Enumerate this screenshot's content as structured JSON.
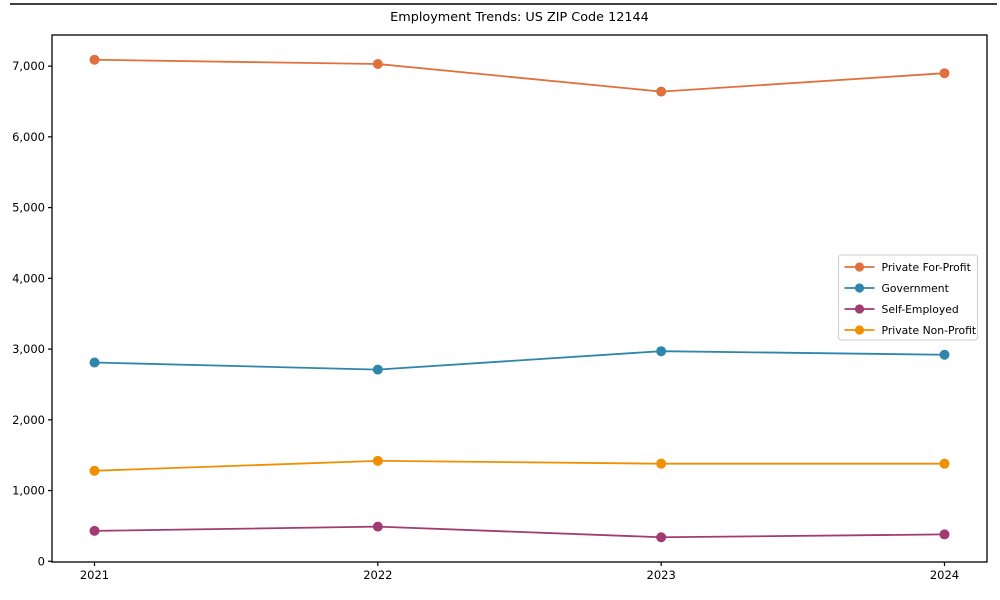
{
  "chart_data": {
    "type": "line",
    "title": "Employment Trends: US ZIP Code 12144",
    "x": [
      2021,
      2022,
      2023,
      2024
    ],
    "xtick_labels": [
      "2021",
      "2022",
      "2023",
      "2024"
    ],
    "yticks": [
      0,
      1000,
      2000,
      3000,
      4000,
      5000,
      6000,
      7000
    ],
    "ytick_labels": [
      "0",
      "1,000",
      "2,000",
      "3,000",
      "4,000",
      "5,000",
      "6,000",
      "7,000"
    ],
    "xlim": [
      2020.85,
      2024.15
    ],
    "ylim": [
      -10,
      7440
    ],
    "grid": false,
    "legend_position": "center-right",
    "series": [
      {
        "name": "Private For-Profit",
        "color": "#E0703C",
        "values": [
          7090,
          7030,
          6640,
          6900
        ]
      },
      {
        "name": "Government",
        "color": "#2E86AB",
        "values": [
          2810,
          2710,
          2970,
          2920
        ]
      },
      {
        "name": "Self-Employed",
        "color": "#A23B72",
        "values": [
          430,
          490,
          340,
          380
        ]
      },
      {
        "name": "Private Non-Profit",
        "color": "#F18F01",
        "values": [
          1280,
          1420,
          1380,
          1380
        ]
      }
    ],
    "axis_color": "#000000",
    "legend_border_color": "#cccccc",
    "background_color": "#ffffff"
  }
}
